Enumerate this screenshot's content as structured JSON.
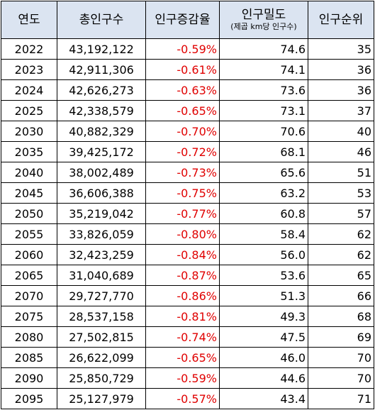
{
  "columns": {
    "year": "연도",
    "population": "총인구수",
    "rate": "인구증감율",
    "density": "인구밀도",
    "density_sub": "(제곱 km당 인구수)",
    "rank": "인구순위"
  },
  "colors": {
    "header_bg": "#dbe4f1",
    "negative_rate": "#e00000",
    "grid": "#000000"
  },
  "rows": [
    {
      "year": "2022",
      "population": "43,192,122",
      "rate": "-0.59%",
      "density": "74.6",
      "rank": "35"
    },
    {
      "year": "2023",
      "population": "42,911,306",
      "rate": "-0.61%",
      "density": "74.1",
      "rank": "36"
    },
    {
      "year": "2024",
      "population": "42,626,273",
      "rate": "-0.63%",
      "density": "73.6",
      "rank": "36"
    },
    {
      "year": "2025",
      "population": "42,338,579",
      "rate": "-0.65%",
      "density": "73.1",
      "rank": "37"
    },
    {
      "year": "2030",
      "population": "40,882,329",
      "rate": "-0.70%",
      "density": "70.6",
      "rank": "40"
    },
    {
      "year": "2035",
      "population": "39,425,172",
      "rate": "-0.72%",
      "density": "68.1",
      "rank": "46"
    },
    {
      "year": "2040",
      "population": "38,002,489",
      "rate": "-0.73%",
      "density": "65.6",
      "rank": "51"
    },
    {
      "year": "2045",
      "population": "36,606,388",
      "rate": "-0.75%",
      "density": "63.2",
      "rank": "53"
    },
    {
      "year": "2050",
      "population": "35,219,042",
      "rate": "-0.77%",
      "density": "60.8",
      "rank": "57"
    },
    {
      "year": "2055",
      "population": "33,826,059",
      "rate": "-0.80%",
      "density": "58.4",
      "rank": "62"
    },
    {
      "year": "2060",
      "population": "32,423,259",
      "rate": "-0.84%",
      "density": "56.0",
      "rank": "62"
    },
    {
      "year": "2065",
      "population": "31,040,689",
      "rate": "-0.87%",
      "density": "53.6",
      "rank": "65"
    },
    {
      "year": "2070",
      "population": "29,727,770",
      "rate": "-0.86%",
      "density": "51.3",
      "rank": "66"
    },
    {
      "year": "2075",
      "population": "28,537,158",
      "rate": "-0.81%",
      "density": "49.3",
      "rank": "68"
    },
    {
      "year": "2080",
      "population": "27,502,815",
      "rate": "-0.74%",
      "density": "47.5",
      "rank": "69"
    },
    {
      "year": "2085",
      "population": "26,622,099",
      "rate": "-0.65%",
      "density": "46.0",
      "rank": "70"
    },
    {
      "year": "2090",
      "population": "25,850,729",
      "rate": "-0.59%",
      "density": "44.6",
      "rank": "70"
    },
    {
      "year": "2095",
      "population": "25,127,979",
      "rate": "-0.57%",
      "density": "43.4",
      "rank": "71"
    }
  ]
}
